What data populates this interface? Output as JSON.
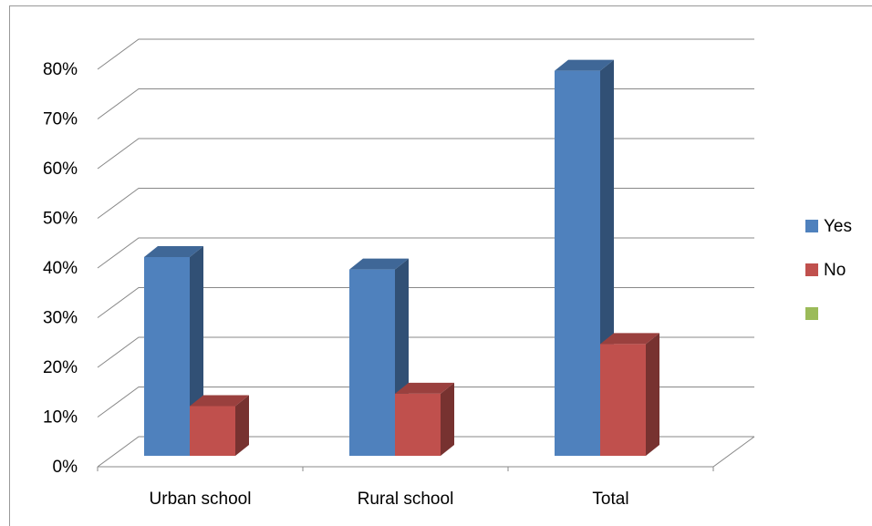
{
  "chart_data": {
    "type": "bar3d",
    "categories": [
      "Urban school",
      "Rural school",
      "Total"
    ],
    "series": [
      {
        "name": "Yes",
        "color": "#4f81bd",
        "values": [
          40,
          37.5,
          77.5
        ]
      },
      {
        "name": "No",
        "color": "#c0504d",
        "values": [
          10,
          12.5,
          22.5
        ]
      },
      {
        "color": "#9bbb59",
        "values": [
          null,
          null,
          null
        ]
      }
    ],
    "ylim": [
      0,
      80
    ],
    "yticks": [
      {
        "value": 0,
        "label": "0%"
      },
      {
        "value": 10,
        "label": "10%"
      },
      {
        "value": 20,
        "label": "20%"
      },
      {
        "value": 30,
        "label": "30%"
      },
      {
        "value": 40,
        "label": "40%"
      },
      {
        "value": 50,
        "label": "50%"
      },
      {
        "value": 60,
        "label": "60%"
      },
      {
        "value": 70,
        "label": "70%"
      },
      {
        "value": 80,
        "label": "80%"
      }
    ],
    "grid": true,
    "legend": "right"
  }
}
